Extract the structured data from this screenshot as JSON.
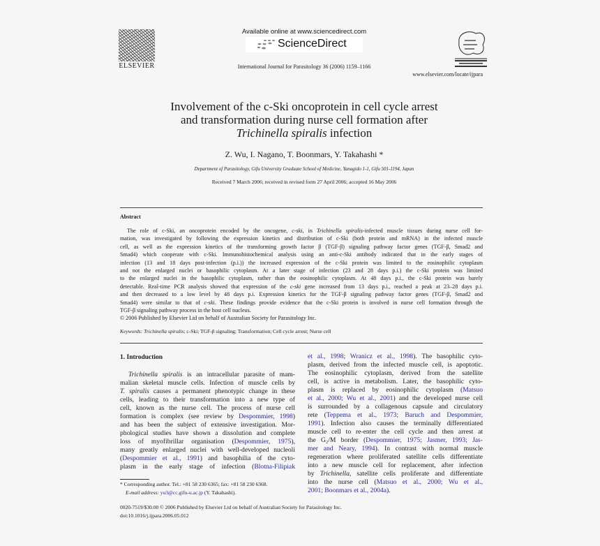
{
  "header": {
    "publisher_logo_text": "ELSEVIER",
    "available_online": "Available online at www.sciencedirect.com",
    "sciencedirect_logo": "ScienceDirect",
    "journal_citation": "International Journal for Parasitology 36 (2006) 1159–1166",
    "journal_url": "www.elsevier.com/locate/ijpara",
    "journal_logo_text": "INTERNATIONAL JOURNAL for PARASITOLOGY"
  },
  "article": {
    "title_lines": [
      [
        {
          "t": "Involvement of the c-Ski oncoprotein in cell cycle arrest"
        }
      ],
      [
        {
          "t": "and transformation during nurse cell formation after"
        }
      ],
      [
        {
          "t": "Trichinella spiralis",
          "s": "i"
        },
        {
          "t": " infection"
        }
      ]
    ],
    "authors": "Z. Wu, I. Nagano, T. Boonmars, Y. Takahashi *",
    "affiliation": "Department of Parasitology, Gifu University Graduate School of Medicine, Yanagido 1-1, Gifu 501-1194, Japan",
    "received": "Received 7 March 2006; received in revised form 27 April 2006; accepted 16 May 2006"
  },
  "abstract": {
    "heading": "Abstract",
    "paragraphs": [
      [
        [
          {
            "t": "The role of c-Ski, an oncoprotein encoded by the oncogene, "
          },
          {
            "t": "c-ski",
            "s": "i"
          },
          {
            "t": ", in "
          },
          {
            "t": "Trichinella spiralis",
            "s": "i"
          },
          {
            "t": "-infected muscle tissues during nurse cell for-"
          }
        ],
        [
          {
            "t": "mation, was investigated by following the expression kinetics and distribution of c-Ski (both protein and mRNA) in the infected muscle"
          }
        ],
        [
          {
            "t": "cell, as well as the expression kinetics of the transforming growth factor β (TGF-β) signaling pathway factor genes (TGF-β, Smad2 and"
          }
        ],
        [
          {
            "t": "Smad4) which cooperate with c-Ski. Immunohistochemical analysis using an anti-c-Ski antibody indicated that in the early stages of"
          }
        ],
        [
          {
            "t": "infection (13 and 18 days post-infection (p.i.)) the increased expression of the c-Ski protein was limited to the eosinophilic cytoplasm"
          }
        ],
        [
          {
            "t": "and not the enlarged nuclei or basophilic cytoplasm. At a later stage of infection (23 and 28 days p.i.) the c-Ski protein was limited"
          }
        ],
        [
          {
            "t": "to the enlarged nuclei in the basophilic cytoplasm, rather than the eosinophilic cytoplasm. At 48 days p.i., the c-Ski protein was barely"
          }
        ],
        [
          {
            "t": "detectable. Real-time PCR analysis showed that expression of the "
          },
          {
            "t": "c-ski",
            "s": "i"
          },
          {
            "t": " gene increased from 13 days p.i., reached a peak at 23–28 days p.i."
          }
        ],
        [
          {
            "t": "and then decreased to a low level by 48 days p.i. Expression kinetics for the TGF-β signaling pathway factor genes (TGF-β, Smad2 and"
          }
        ],
        [
          {
            "t": "Smad4) were similar to that of "
          },
          {
            "t": "c-ski",
            "s": "i"
          },
          {
            "t": ". These findings provide evidence that the c-Ski protein is involved in nurse cell formation through the"
          }
        ],
        [
          {
            "t": "TGF-β signaling pathway process in the host cell nucleus."
          }
        ]
      ],
      [
        [
          {
            "t": "© 2006 Published by Elsevier Ltd on behalf of Australian Society for Parasitology Inc."
          }
        ]
      ]
    ],
    "keywords": [
      {
        "t": "Keywords:  ",
        "s": "i"
      },
      {
        "t": "Trichinella spiralis",
        "s": "i"
      },
      {
        "t": "; c-Ski; TGF-β signaling; Transformation; Cell cycle arrest; Nurse cell"
      }
    ]
  },
  "introduction": {
    "heading": "1. Introduction",
    "left_column": [
      [
        {
          "t": "Trichinella spiralis",
          "s": "i"
        },
        {
          "t": " is an intracellular parasite of mam-"
        }
      ],
      [
        {
          "t": "malian skeletal muscle cells. Infection of muscle cells by"
        }
      ],
      [
        {
          "t": "T. spiralis",
          "s": "i"
        },
        {
          "t": " causes a permanent phenotypic change in these"
        }
      ],
      [
        {
          "t": "cells, leading to their transformation into a new type of"
        }
      ],
      [
        {
          "t": "cell, known as the nurse cell. The process of nurse cell"
        }
      ],
      [
        {
          "t": "formation is complex (see review by "
        },
        {
          "t": "Despommier, 1998",
          "s": "l"
        },
        {
          "t": ")"
        }
      ],
      [
        {
          "t": "and has been the subject of extensive investigation. Mor-"
        }
      ],
      [
        {
          "t": "phological studies have shown a dissolution and complete"
        }
      ],
      [
        {
          "t": "loss of myofibrillar organisation ("
        },
        {
          "t": "Despommier, 1975",
          "s": "l"
        },
        {
          "t": "),"
        }
      ],
      [
        {
          "t": "many greatly enlarged nuclei with well-developed nucleoli"
        }
      ],
      [
        {
          "t": "("
        },
        {
          "t": "Despommier et al., 1991",
          "s": "l"
        },
        {
          "t": ") and basophilia of the cyto-"
        }
      ],
      [
        {
          "t": "plasm in the early stage of infection ("
        },
        {
          "t": "Blotna-Filipiak",
          "s": "l"
        }
      ]
    ],
    "right_column": [
      [
        {
          "t": "et al., 1998; Wranicz et al., 1998",
          "s": "l"
        },
        {
          "t": "). The basophilic cyto-"
        }
      ],
      [
        {
          "t": "plasm, derived from the infected muscle cell, is apoptotic."
        }
      ],
      [
        {
          "t": "The eosinophilic cytoplasm, derived from the satellite"
        }
      ],
      [
        {
          "t": "cell, is active in metabolism. Later, the basophilic cyto-"
        }
      ],
      [
        {
          "t": "plasm is replaced by eosinophilic cytoplasm ("
        },
        {
          "t": "Matsuo",
          "s": "l"
        }
      ],
      [
        {
          "t": "et al., 2000; Wu et al., 2001",
          "s": "l"
        },
        {
          "t": ") and the developed nurse cell"
        }
      ],
      [
        {
          "t": "is surrounded by a collagenous capsule and circulatory"
        }
      ],
      [
        {
          "t": "rete ("
        },
        {
          "t": "Teppema et al., 1973; Baruch and Despommier,",
          "s": "l"
        }
      ],
      [
        {
          "t": "1991",
          "s": "l"
        },
        {
          "t": "). Infection also causes the terminally differentiated"
        }
      ],
      [
        {
          "t": "muscle cell to re-enter the cell cycle and then arrest at"
        }
      ],
      [
        {
          "t": "the G₂/M border ("
        },
        {
          "t": "Despommier, 1975; Jasmer, 1993; Jas-",
          "s": "l"
        }
      ],
      [
        {
          "t": "mer and Neary, 1994",
          "s": "l"
        },
        {
          "t": "). In contrast with normal muscle"
        }
      ],
      [
        {
          "t": "regeneration where proliferated satellite cells differentiate"
        }
      ],
      [
        {
          "t": "into a new muscle cell for replacement, after infection"
        }
      ],
      [
        {
          "t": "by "
        },
        {
          "t": "Trichinella",
          "s": "i"
        },
        {
          "t": ", satellite cells proliferate and differentiate"
        }
      ],
      [
        {
          "t": "into the nurse cell ("
        },
        {
          "t": "Matsuo et al., 2000; Wu et al.,",
          "s": "l"
        }
      ],
      [
        {
          "t": "2001; Boonmars et al., 2004a",
          "s": "l"
        },
        {
          "t": ")."
        }
      ]
    ]
  },
  "footnote": {
    "lines": [
      [
        {
          "t": "* Corresponding author. Tel.: +81 58 230 6365; fax: +81 58 230 6368."
        }
      ],
      [
        {
          "t": "E-mail address: ",
          "s": "i"
        },
        {
          "t": "yu3@cc.gifu-u.ac.jp",
          "s": "l"
        },
        {
          "t": " (Y. Takahashi)."
        }
      ]
    ]
  },
  "footer": {
    "issn_line": "0020-7519/$30.00 © 2006 Published by Elsevier Ltd on behalf of Australian Society for Parasitology Inc.",
    "doi": "doi:10.1016/j.ijpara.2006.05.012"
  },
  "colors": {
    "link": "#2a2a8a",
    "text": "#1a1a1a",
    "background": "#f6f6f6"
  }
}
